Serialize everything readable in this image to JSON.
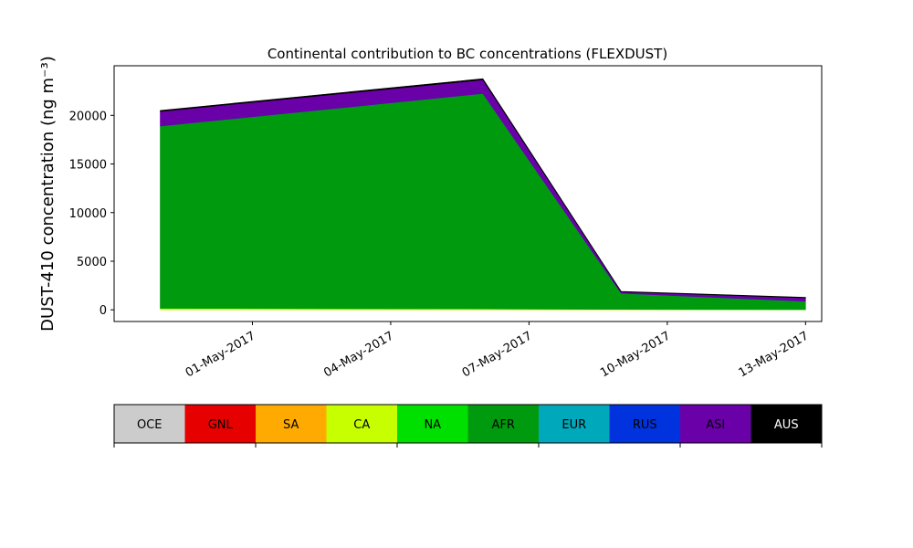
{
  "chart_data": {
    "type": "area",
    "stacked": true,
    "title": "Continental contribution to BC concentrations (FLEXDUST)",
    "ylabel": "DUST-410 concentration (ng m⁻³)",
    "xlabel": "",
    "x": [
      "2017-04-29",
      "2017-05-06",
      "2017-05-09",
      "2017-05-13"
    ],
    "xlim": [
      "2017-04-28",
      "2017-05-13.35"
    ],
    "ylim": [
      -1200,
      25100
    ],
    "yticks": [
      0,
      5000,
      10000,
      15000,
      20000
    ],
    "ytick_labels": [
      "0",
      "5000",
      "10000",
      "15000",
      "20000"
    ],
    "xticks": [
      "2017-05-01",
      "2017-05-04",
      "2017-05-07",
      "2017-05-10",
      "2017-05-13"
    ],
    "xtick_labels": [
      "01-May-2017",
      "04-May-2017",
      "07-May-2017",
      "10-May-2017",
      "13-May-2017"
    ],
    "grid": false,
    "series": [
      {
        "name": "OCE",
        "color": "#cccccc",
        "values": [
          0,
          0,
          0,
          0
        ]
      },
      {
        "name": "GNL",
        "color": "#e60000",
        "values": [
          0,
          0,
          0,
          0
        ]
      },
      {
        "name": "SA",
        "color": "#ffaa00",
        "values": [
          0,
          0,
          0,
          0
        ]
      },
      {
        "name": "CA",
        "color": "#c8ff00",
        "values": [
          150,
          100,
          50,
          30
        ]
      },
      {
        "name": "NA",
        "color": "#00e000",
        "values": [
          0,
          0,
          0,
          0
        ]
      },
      {
        "name": "AFR",
        "color": "#009a0e",
        "values": [
          18750,
          22150,
          1650,
          850
        ]
      },
      {
        "name": "EUR",
        "color": "#00a8bc",
        "values": [
          0,
          0,
          0,
          0
        ]
      },
      {
        "name": "RUS",
        "color": "#0033dd",
        "values": [
          0,
          0,
          0,
          0
        ]
      },
      {
        "name": "ASI",
        "color": "#6a00a8",
        "values": [
          1500,
          1400,
          150,
          350
        ]
      },
      {
        "name": "AUS",
        "color": "#000000",
        "values": [
          100,
          120,
          50,
          50
        ]
      }
    ],
    "legend": {
      "placement": "bottom",
      "entries": [
        "OCE",
        "GNL",
        "SA",
        "CA",
        "NA",
        "AFR",
        "EUR",
        "RUS",
        "ASI",
        "AUS"
      ],
      "label_colors": [
        "#000000",
        "#000000",
        "#000000",
        "#000000",
        "#000000",
        "#000000",
        "#000000",
        "#000000",
        "#000000",
        "#ffffff"
      ]
    }
  }
}
